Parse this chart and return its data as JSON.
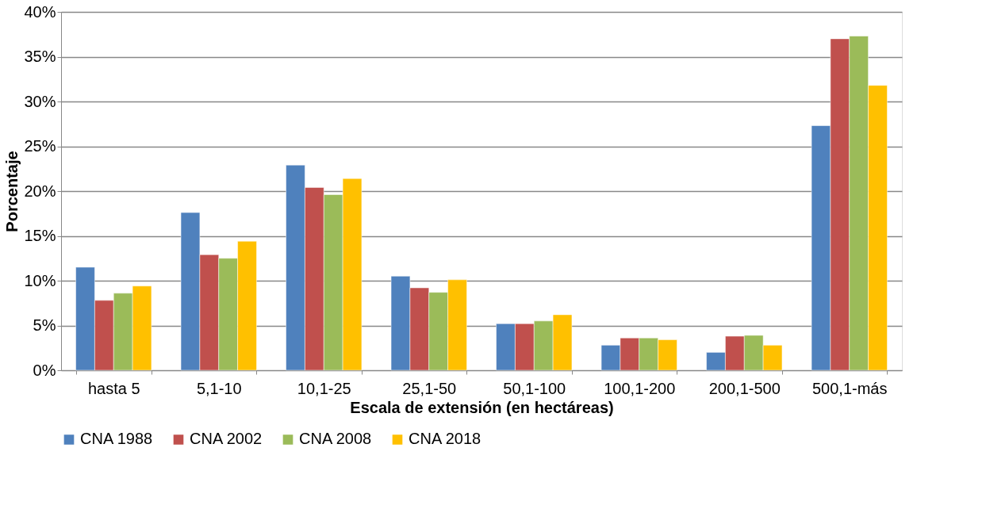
{
  "chart_data": {
    "type": "bar",
    "xlabel": "Escala de extensión (en hectáreas)",
    "ylabel": "Porcentaje",
    "categories": [
      "hasta 5",
      "5,1-10",
      "10,1-25",
      "25,1-50",
      "50,1-100",
      "100,1-200",
      "200,1-500",
      "500,1-más"
    ],
    "series": [
      {
        "name": "CNA 1988",
        "color": "#4f81bd",
        "values": [
          11.5,
          17.6,
          22.9,
          10.5,
          5.2,
          2.8,
          2.0,
          27.3
        ]
      },
      {
        "name": "CNA 2002",
        "color": "#c0504d",
        "values": [
          7.8,
          12.9,
          20.4,
          9.2,
          5.2,
          3.6,
          3.8,
          37.0
        ]
      },
      {
        "name": "CNA 2008",
        "color": "#9bbb59",
        "values": [
          8.6,
          12.5,
          19.6,
          8.7,
          5.5,
          3.6,
          3.9,
          37.3
        ]
      },
      {
        "name": "CNA 2018",
        "color": "#ffc000",
        "values": [
          9.4,
          14.4,
          21.4,
          10.1,
          6.2,
          3.4,
          2.8,
          31.8
        ]
      }
    ],
    "ylim": [
      0,
      40
    ],
    "yticks": [
      {
        "value": 0,
        "label": "0%"
      },
      {
        "value": 5,
        "label": "5%"
      },
      {
        "value": 10,
        "label": "10%"
      },
      {
        "value": 15,
        "label": "15%"
      },
      {
        "value": 20,
        "label": "20%"
      },
      {
        "value": 25,
        "label": "25%"
      },
      {
        "value": 30,
        "label": "30%"
      },
      {
        "value": 35,
        "label": "35%"
      },
      {
        "value": 40,
        "label": "40%"
      }
    ],
    "grid": "y",
    "legend": "bottom"
  }
}
